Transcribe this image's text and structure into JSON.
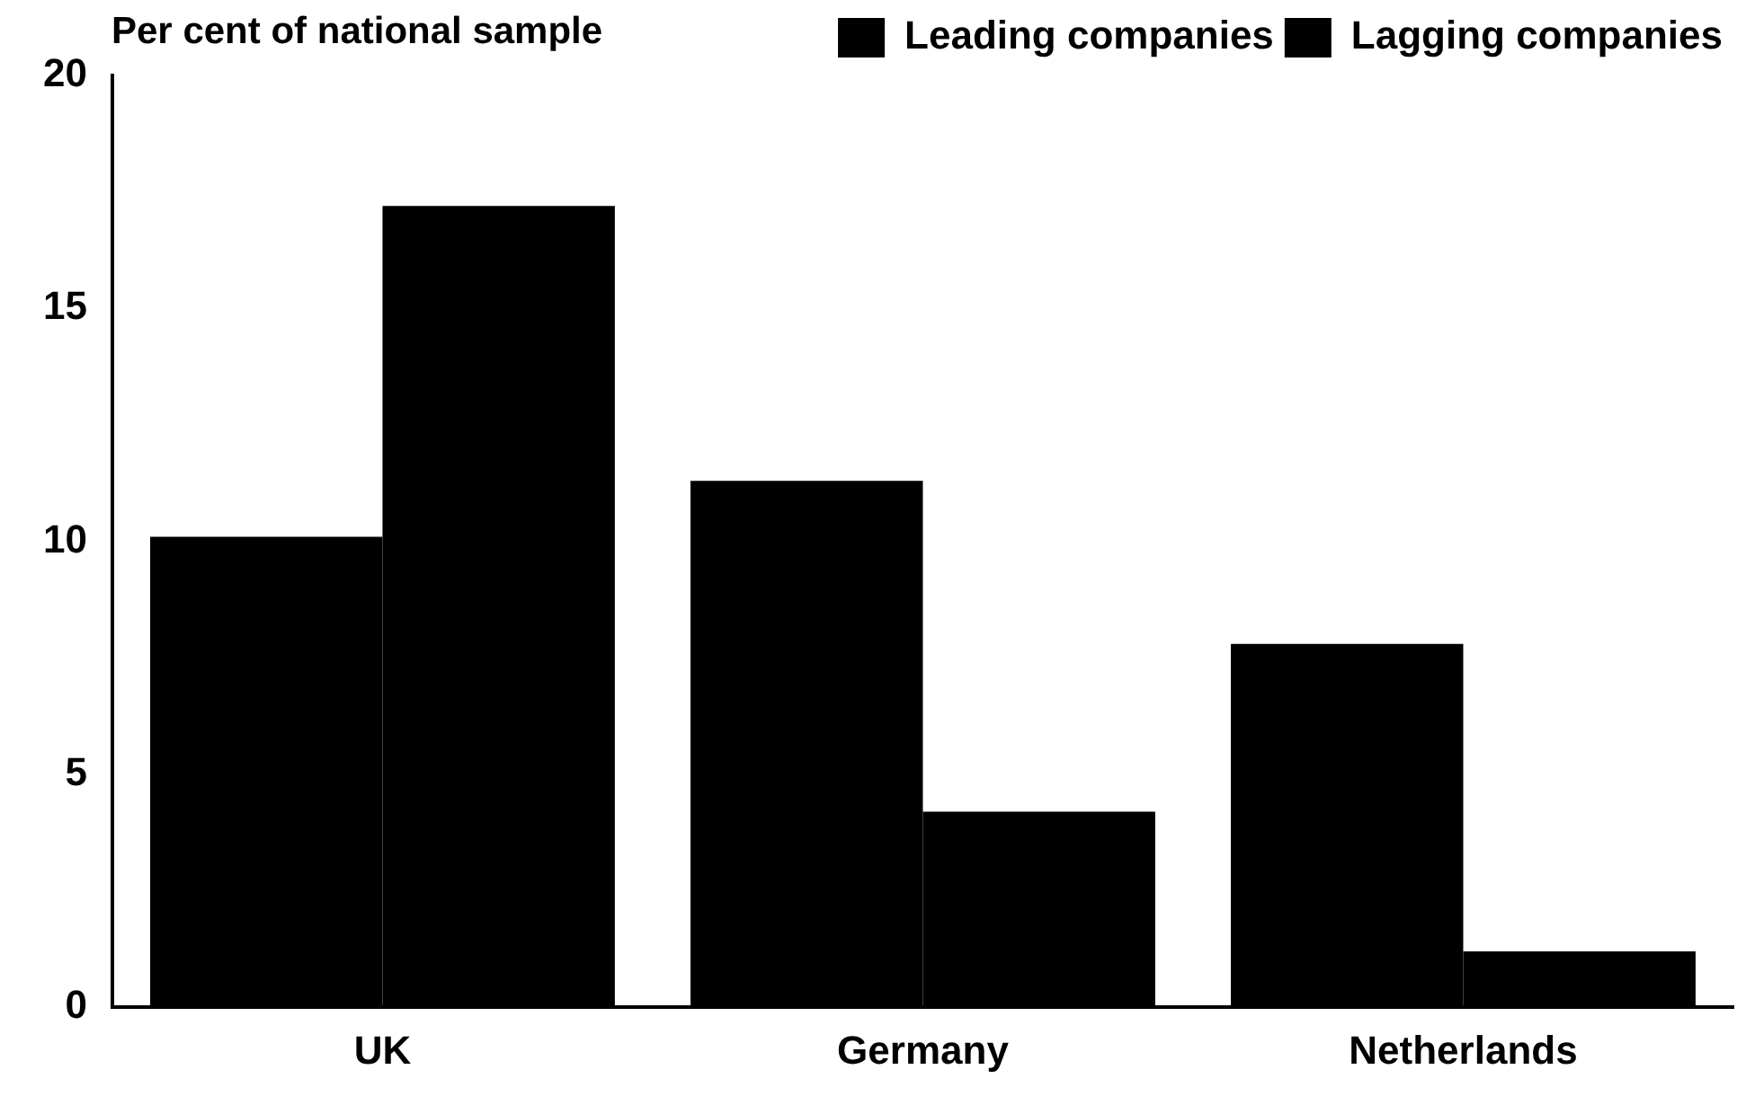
{
  "chart_data": {
    "type": "bar",
    "ylabel": "Per cent of national sample",
    "categories": [
      "UK",
      "Germany",
      "Netherlands"
    ],
    "series": [
      {
        "name": "Leading companies",
        "color": "#000000",
        "values": [
          10.1,
          11.3,
          7.8
        ]
      },
      {
        "name": "Lagging companies",
        "color": "#000000",
        "values": [
          17.2,
          4.2,
          1.2
        ]
      }
    ],
    "ylim": [
      0,
      20
    ],
    "yticks": [
      0,
      5,
      10,
      15,
      20
    ],
    "grid": false,
    "legend": "top right"
  }
}
